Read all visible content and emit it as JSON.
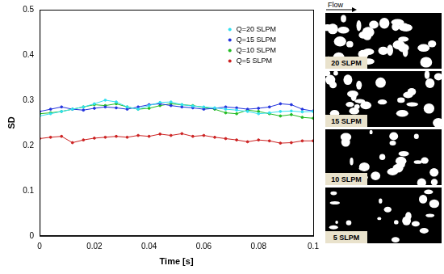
{
  "chart_data": {
    "type": "line",
    "y_label": "SD",
    "x_label": "Time [s]",
    "xlim": [
      0,
      0.1
    ],
    "xticks": [
      0,
      0.02,
      0.04,
      0.06,
      0.08,
      0.1
    ],
    "ylim": [
      0,
      0.5
    ],
    "yticks": [
      0,
      0.1,
      0.2,
      0.3,
      0.4,
      0.5
    ],
    "grid": false,
    "legend": "upper right",
    "marker": "circle",
    "line_style": "solid",
    "x": [
      0,
      0.004,
      0.008,
      0.012,
      0.016,
      0.02,
      0.024,
      0.028,
      0.032,
      0.036,
      0.04,
      0.044,
      0.048,
      0.052,
      0.056,
      0.06,
      0.064,
      0.068,
      0.072,
      0.076,
      0.08,
      0.084,
      0.088,
      0.092,
      0.096,
      0.1
    ],
    "series": [
      {
        "name": "Q=20 SLPM",
        "color": "#33e0f0",
        "values": [
          0.265,
          0.27,
          0.275,
          0.28,
          0.285,
          0.292,
          0.3,
          0.296,
          0.285,
          0.28,
          0.288,
          0.295,
          0.296,
          0.29,
          0.287,
          0.285,
          0.283,
          0.28,
          0.278,
          0.275,
          0.27,
          0.272,
          0.275,
          0.276,
          0.274,
          0.275
        ]
      },
      {
        "name": "Q=15 SLPM",
        "color": "#2233dd",
        "values": [
          0.275,
          0.28,
          0.285,
          0.28,
          0.278,
          0.282,
          0.285,
          0.283,
          0.28,
          0.285,
          0.29,
          0.292,
          0.288,
          0.285,
          0.283,
          0.28,
          0.282,
          0.285,
          0.283,
          0.28,
          0.282,
          0.285,
          0.292,
          0.29,
          0.28,
          0.276
        ]
      },
      {
        "name": "Q=10 SLPM",
        "color": "#22bb22",
        "values": [
          0.27,
          0.272,
          0.275,
          0.28,
          0.285,
          0.29,
          0.288,
          0.292,
          0.285,
          0.28,
          0.282,
          0.288,
          0.292,
          0.29,
          0.288,
          0.284,
          0.28,
          0.272,
          0.27,
          0.278,
          0.275,
          0.27,
          0.265,
          0.268,
          0.262,
          0.26
        ]
      },
      {
        "name": "Q=5 SLPM",
        "color": "#cc2222",
        "values": [
          0.215,
          0.218,
          0.22,
          0.206,
          0.212,
          0.216,
          0.218,
          0.22,
          0.218,
          0.222,
          0.22,
          0.225,
          0.222,
          0.226,
          0.22,
          0.222,
          0.218,
          0.215,
          0.212,
          0.208,
          0.212,
          0.21,
          0.205,
          0.206,
          0.21,
          0.21
        ]
      }
    ]
  },
  "image_panels": {
    "arrow_label": "Flow",
    "labels": [
      "20 SLPM",
      "15 SLPM",
      "10 SLPM",
      "5 SLPM"
    ]
  }
}
